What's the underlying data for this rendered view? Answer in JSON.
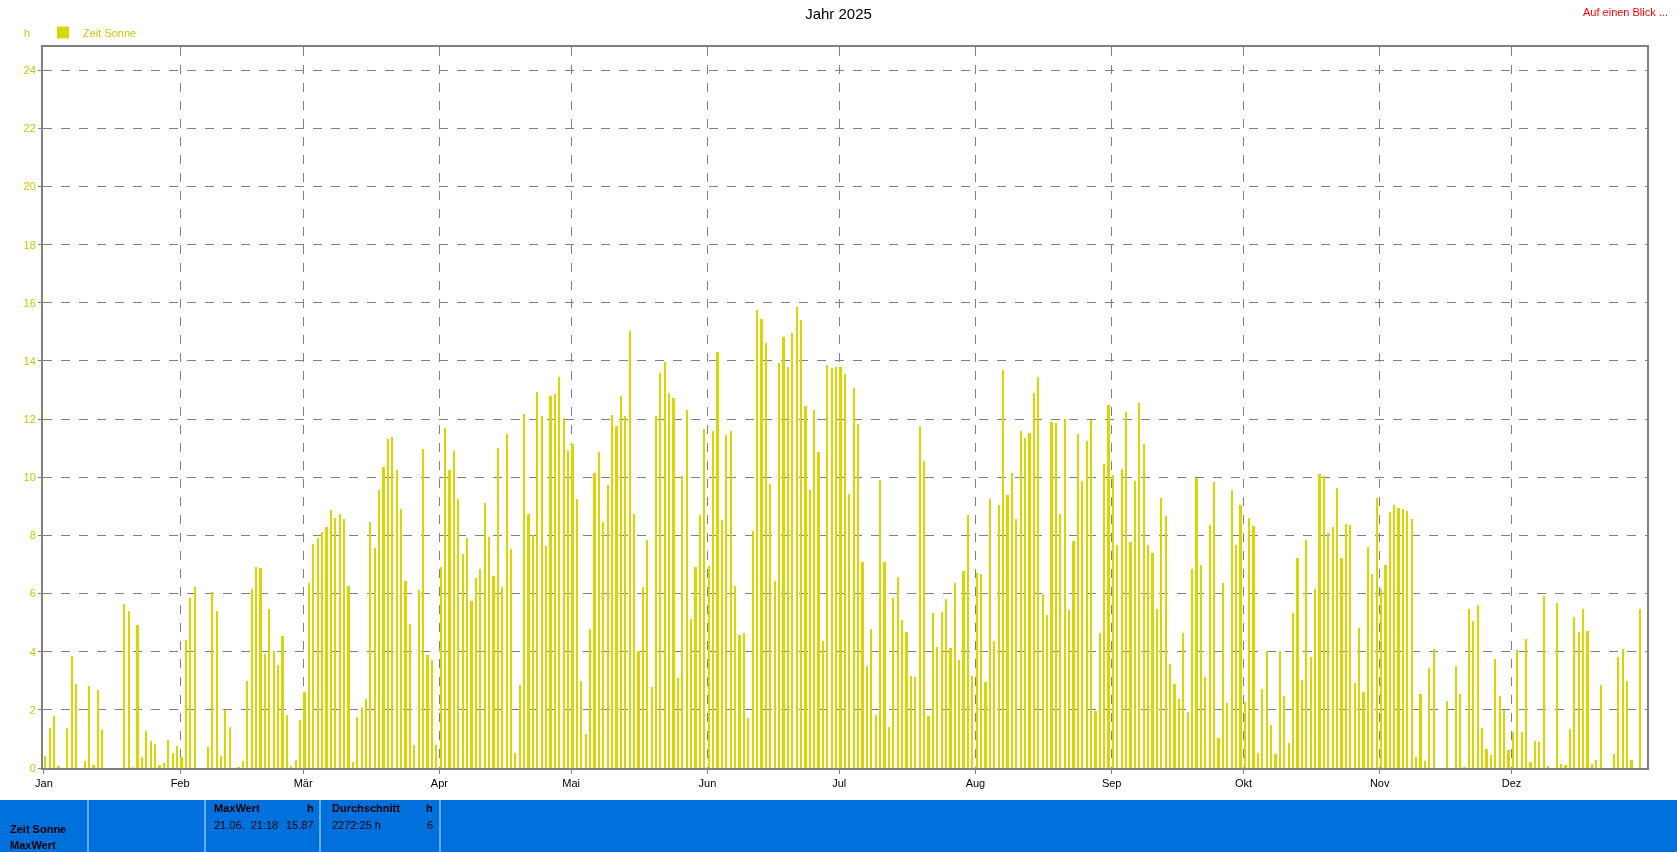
{
  "chart_data": {
    "type": "bar",
    "title": "Jahr 2025",
    "ylabel": "h",
    "x": [
      "2025-01-01",
      "2025-01-02",
      "2025-01-03",
      "2025-01-04",
      "2025-01-05",
      "2025-01-06",
      "2025-01-07",
      "2025-01-08",
      "2025-01-09",
      "2025-01-10",
      "2025-01-11",
      "2025-01-12",
      "2025-01-13",
      "2025-01-14",
      "2025-01-15",
      "2025-01-16",
      "2025-01-17",
      "2025-01-18",
      "2025-01-19",
      "2025-01-20",
      "2025-01-21",
      "2025-01-22",
      "2025-01-23",
      "2025-01-24",
      "2025-01-25",
      "2025-01-26",
      "2025-01-27",
      "2025-01-28",
      "2025-01-29",
      "2025-01-30",
      "2025-01-31",
      "2025-02-01",
      "2025-02-02",
      "2025-02-03",
      "2025-02-04",
      "2025-02-05",
      "2025-02-06",
      "2025-02-07",
      "2025-02-08",
      "2025-02-09",
      "2025-02-10",
      "2025-02-11",
      "2025-02-12",
      "2025-02-13",
      "2025-02-14",
      "2025-02-15",
      "2025-02-16",
      "2025-02-17",
      "2025-02-18",
      "2025-02-19",
      "2025-02-20",
      "2025-02-21",
      "2025-02-22",
      "2025-02-23",
      "2025-02-24",
      "2025-02-25",
      "2025-02-26",
      "2025-02-27",
      "2025-02-28",
      "2025-03-01",
      "2025-03-02",
      "2025-03-03",
      "2025-03-04",
      "2025-03-05",
      "2025-03-06",
      "2025-03-07",
      "2025-03-08",
      "2025-03-09",
      "2025-03-10",
      "2025-03-11",
      "2025-03-12",
      "2025-03-13",
      "2025-03-14",
      "2025-03-15",
      "2025-03-16",
      "2025-03-17",
      "2025-03-18",
      "2025-03-19",
      "2025-03-20",
      "2025-03-21",
      "2025-03-22",
      "2025-03-23",
      "2025-03-24",
      "2025-03-25",
      "2025-03-26",
      "2025-03-27",
      "2025-03-28",
      "2025-03-29",
      "2025-03-30",
      "2025-03-31",
      "2025-04-01",
      "2025-04-02",
      "2025-04-03",
      "2025-04-04",
      "2025-04-05",
      "2025-04-06",
      "2025-04-07",
      "2025-04-08",
      "2025-04-09",
      "2025-04-10",
      "2025-04-11",
      "2025-04-12",
      "2025-04-13",
      "2025-04-14",
      "2025-04-15",
      "2025-04-16",
      "2025-04-17",
      "2025-04-18",
      "2025-04-19",
      "2025-04-20",
      "2025-04-21",
      "2025-04-22",
      "2025-04-23",
      "2025-04-24",
      "2025-04-25",
      "2025-04-26",
      "2025-04-27",
      "2025-04-28",
      "2025-04-29",
      "2025-04-30",
      "2025-05-01",
      "2025-05-02",
      "2025-05-03",
      "2025-05-04",
      "2025-05-05",
      "2025-05-06",
      "2025-05-07",
      "2025-05-08",
      "2025-05-09",
      "2025-05-10",
      "2025-05-11",
      "2025-05-12",
      "2025-05-13",
      "2025-05-14",
      "2025-05-15",
      "2025-05-16",
      "2025-05-17",
      "2025-05-18",
      "2025-05-19",
      "2025-05-20",
      "2025-05-21",
      "2025-05-22",
      "2025-05-23",
      "2025-05-24",
      "2025-05-25",
      "2025-05-26",
      "2025-05-27",
      "2025-05-28",
      "2025-05-29",
      "2025-05-30",
      "2025-05-31",
      "2025-06-01",
      "2025-06-02",
      "2025-06-03",
      "2025-06-04",
      "2025-06-05",
      "2025-06-06",
      "2025-06-07",
      "2025-06-08",
      "2025-06-09",
      "2025-06-10",
      "2025-06-11",
      "2025-06-12",
      "2025-06-13",
      "2025-06-14",
      "2025-06-15",
      "2025-06-16",
      "2025-06-17",
      "2025-06-18",
      "2025-06-19",
      "2025-06-20",
      "2025-06-21",
      "2025-06-22",
      "2025-06-23",
      "2025-06-24",
      "2025-06-25",
      "2025-06-26",
      "2025-06-27",
      "2025-06-28",
      "2025-06-29",
      "2025-06-30",
      "2025-07-01",
      "2025-07-02",
      "2025-07-03",
      "2025-07-04",
      "2025-07-05",
      "2025-07-06",
      "2025-07-07",
      "2025-07-08",
      "2025-07-09",
      "2025-07-10",
      "2025-07-11",
      "2025-07-12",
      "2025-07-13",
      "2025-07-14",
      "2025-07-15",
      "2025-07-16",
      "2025-07-17",
      "2025-07-18",
      "2025-07-19",
      "2025-07-20",
      "2025-07-21",
      "2025-07-22",
      "2025-07-23",
      "2025-07-24",
      "2025-07-25",
      "2025-07-26",
      "2025-07-27",
      "2025-07-28",
      "2025-07-29",
      "2025-07-30",
      "2025-07-31",
      "2025-08-01",
      "2025-08-02",
      "2025-08-03",
      "2025-08-04",
      "2025-08-05",
      "2025-08-06",
      "2025-08-07",
      "2025-08-08",
      "2025-08-09",
      "2025-08-10",
      "2025-08-11",
      "2025-08-12",
      "2025-08-13",
      "2025-08-14",
      "2025-08-15",
      "2025-08-16",
      "2025-08-17",
      "2025-08-18",
      "2025-08-19",
      "2025-08-20",
      "2025-08-21",
      "2025-08-22",
      "2025-08-23",
      "2025-08-24",
      "2025-08-25",
      "2025-08-26",
      "2025-08-27",
      "2025-08-28",
      "2025-08-29",
      "2025-08-30",
      "2025-08-31",
      "2025-09-01",
      "2025-09-02",
      "2025-09-03",
      "2025-09-04",
      "2025-09-05",
      "2025-09-06",
      "2025-09-07",
      "2025-09-08",
      "2025-09-09",
      "2025-09-10",
      "2025-09-11",
      "2025-09-12",
      "2025-09-13",
      "2025-09-14",
      "2025-09-15",
      "2025-09-16",
      "2025-09-17",
      "2025-09-18",
      "2025-09-19",
      "2025-09-20",
      "2025-09-21",
      "2025-09-22",
      "2025-09-23",
      "2025-09-24",
      "2025-09-25",
      "2025-09-26",
      "2025-09-27",
      "2025-09-28",
      "2025-09-29",
      "2025-09-30",
      "2025-10-01",
      "2025-10-02",
      "2025-10-03",
      "2025-10-04",
      "2025-10-05",
      "2025-10-06",
      "2025-10-07",
      "2025-10-08",
      "2025-10-09",
      "2025-10-10",
      "2025-10-11",
      "2025-10-12",
      "2025-10-13",
      "2025-10-14",
      "2025-10-15",
      "2025-10-16",
      "2025-10-17",
      "2025-10-18",
      "2025-10-19",
      "2025-10-20",
      "2025-10-21",
      "2025-10-22",
      "2025-10-23",
      "2025-10-24",
      "2025-10-25",
      "2025-10-26",
      "2025-10-27",
      "2025-10-28",
      "2025-10-29",
      "2025-10-30",
      "2025-10-31",
      "2025-11-01",
      "2025-11-02",
      "2025-11-03",
      "2025-11-04",
      "2025-11-05",
      "2025-11-06",
      "2025-11-07",
      "2025-11-08",
      "2025-11-09",
      "2025-11-10",
      "2025-11-11",
      "2025-11-12",
      "2025-11-13",
      "2025-11-14",
      "2025-11-15",
      "2025-11-16",
      "2025-11-17",
      "2025-11-18",
      "2025-11-19",
      "2025-11-20",
      "2025-11-21",
      "2025-11-22",
      "2025-11-23",
      "2025-11-24",
      "2025-11-25",
      "2025-11-26",
      "2025-11-27",
      "2025-11-28",
      "2025-11-29",
      "2025-11-30",
      "2025-12-01",
      "2025-12-02",
      "2025-12-03",
      "2025-12-04",
      "2025-12-05",
      "2025-12-06",
      "2025-12-07",
      "2025-12-08",
      "2025-12-09",
      "2025-12-10",
      "2025-12-11",
      "2025-12-12",
      "2025-12-13",
      "2025-12-14",
      "2025-12-15",
      "2025-12-16",
      "2025-12-17",
      "2025-12-18",
      "2025-12-19",
      "2025-12-20",
      "2025-12-21",
      "2025-12-22",
      "2025-12-23",
      "2025-12-24",
      "2025-12-25",
      "2025-12-26",
      "2025-12-27",
      "2025-12-28",
      "2025-12-29",
      "2025-12-30"
    ],
    "xlim": [
      "2024-12-31T19:00",
      "2025-12-31T20:00"
    ],
    "xticks": [
      {
        "value": "2025-01-01",
        "label": "Jan"
      },
      {
        "value": "2025-02-01",
        "label": "Feb"
      },
      {
        "value": "2025-03-01",
        "label": "Mär"
      },
      {
        "value": "2025-04-01",
        "label": "Apr"
      },
      {
        "value": "2025-05-01",
        "label": "Mai"
      },
      {
        "value": "2025-06-01",
        "label": "Jun"
      },
      {
        "value": "2025-07-01",
        "label": "Jul"
      },
      {
        "value": "2025-08-01",
        "label": "Aug"
      },
      {
        "value": "2025-09-01",
        "label": "Sep"
      },
      {
        "value": "2025-10-01",
        "label": "Okt"
      },
      {
        "value": "2025-11-01",
        "label": "Nov"
      },
      {
        "value": "2025-12-01",
        "label": "Dez"
      }
    ],
    "ylim": [
      0,
      24.8
    ],
    "yticks": [
      0,
      2,
      4,
      6,
      8,
      10,
      12,
      14,
      16,
      18,
      20,
      22,
      24
    ],
    "grid": true,
    "legend": "top left",
    "series": [
      {
        "name": "Zeit Sonne",
        "color": "#d8d800",
        "values": [
          0.42,
          1.38,
          1.78,
          0.05,
          0,
          1.38,
          3.85,
          2.9,
          0,
          0.25,
          2.83,
          0.1,
          2.67,
          1.3,
          0,
          0,
          0,
          0,
          5.65,
          5.41,
          0.02,
          4.92,
          0.37,
          1.27,
          0.92,
          0.82,
          0.1,
          0.16,
          0.95,
          0.51,
          0.75,
          0.39,
          4.4,
          5.85,
          6.21,
          0,
          0,
          0.72,
          6.04,
          5.41,
          0.41,
          2.0,
          1.41,
          0,
          0.02,
          0.25,
          2.98,
          6.16,
          6.92,
          6.87,
          3.92,
          5.47,
          4.02,
          3.56,
          4.54,
          1.83,
          0.06,
          0.29,
          1.66,
          2.6,
          6.35,
          7.7,
          7.91,
          8.13,
          8.3,
          8.89,
          8.59,
          8.75,
          8.55,
          6.26,
          0.22,
          1.76,
          2.05,
          2.36,
          8.47,
          7.58,
          9.56,
          10.35,
          11.31,
          11.39,
          10.24,
          8.92,
          6.42,
          4.97,
          0.79,
          6.11,
          10.97,
          3.87,
          3.71,
          0.79,
          6.91,
          11.7,
          10.24,
          10.9,
          9.24,
          7.36,
          7.91,
          5.76,
          6.52,
          6.84,
          9.1,
          7.93,
          6.59,
          11.0,
          6.21,
          11.5,
          7.53,
          0.51,
          2.87,
          12.19,
          8.75,
          8.02,
          12.95,
          12.1,
          7.64,
          12.79,
          12.85,
          13.45,
          12.05,
          10.94,
          11.15,
          9.27,
          2.98,
          1.18,
          4.79,
          10.14,
          10.88,
          8.47,
          9.72,
          12.13,
          11.78,
          12.79,
          12.1,
          15.02,
          8.75,
          4.02,
          6.21,
          7.83,
          2.8,
          12.1,
          13.57,
          13.96,
          12.89,
          12.71,
          3.08,
          10.03,
          12.33,
          5.12,
          6.92,
          8.69,
          11.67,
          6.94,
          11.59,
          14.31,
          8.54,
          11.47,
          11.59,
          6.25,
          4.57,
          4.63,
          1.73,
          8.15,
          15.77,
          15.45,
          14.62,
          9.78,
          6.42,
          13.93,
          14.83,
          13.81,
          14.97,
          15.87,
          15.42,
          12.45,
          9.55,
          12.33,
          10.88,
          4.37,
          13.86,
          13.75,
          13.81,
          13.81,
          13.55,
          9.41,
          13.06,
          11.84,
          7.08,
          3.5,
          4.79,
          1.82,
          9.9,
          7.08,
          1.41,
          5.86,
          6.56,
          5.1,
          4.68,
          3.15,
          3.12,
          11.77,
          10.57,
          1.78,
          5.34,
          4.16,
          5.38,
          5.83,
          4.13,
          6.36,
          3.71,
          6.77,
          8.71,
          3.15,
          6.72,
          6.69,
          2.97,
          9.24,
          4.37,
          9.05,
          13.69,
          9.4,
          10.13,
          8.57,
          11.59,
          11.34,
          11.53,
          12.91,
          13.44,
          6.0,
          5.27,
          11.9,
          11.87,
          8.74,
          12.02,
          5.43,
          7.8,
          11.5,
          9.86,
          11.24,
          11.97,
          1.96,
          4.65,
          10.45,
          12.5,
          10.09,
          7.66,
          10.27,
          12.26,
          7.78,
          9.86,
          12.56,
          11.15,
          7.66,
          7.38,
          5.47,
          9.29,
          8.67,
          3.59,
          2.9,
          2.39,
          4.65,
          1.92,
          6.84,
          9.98,
          6.98,
          3.12,
          8.37,
          9.83,
          1.03,
          6.38,
          2.24,
          9.57,
          7.66,
          9.06,
          2.27,
          8.6,
          8.32,
          0.51,
          2.73,
          4.02,
          1.47,
          0.49,
          4.02,
          2.46,
          0.86,
          5.34,
          7.23,
          3.01,
          7.84,
          3.81,
          6.14,
          10.12,
          10.06,
          8.09,
          8.3,
          9.64,
          7.23,
          8.39,
          8.37,
          2.93,
          4.81,
          2.63,
          7.6,
          6.69,
          9.3,
          6.16,
          6.98,
          8.82,
          9.03,
          8.96,
          8.92,
          8.85,
          8.55,
          0.37,
          2.56,
          0.23,
          3.43,
          4.09,
          0,
          0,
          2.31,
          0,
          3.5,
          2.56,
          0.02,
          5.48,
          5.06,
          5.62,
          1.38,
          0.64,
          0.44,
          3.74,
          2.46,
          2.0,
          0.61,
          1.24,
          4.07,
          1.24,
          4.44,
          0.22,
          0.93,
          0.88,
          5.9,
          0.08,
          0,
          5.69,
          0.15,
          0.09,
          1.33,
          5.2,
          4.68,
          5.48,
          4.72,
          0.15,
          0.29,
          2.84,
          0,
          0,
          0.48,
          3.81,
          4.09,
          2.98,
          0.29,
          0,
          5.48
        ]
      }
    ],
    "annotations": [
      "Auf einen Blick ...",
      "Zeit Sonne",
      "MaxWert",
      "MaxWert",
      "h",
      "21.06.  21:18",
      "15.87",
      "Durchschnitt",
      "h",
      "2272:25 h",
      "6"
    ]
  }
}
